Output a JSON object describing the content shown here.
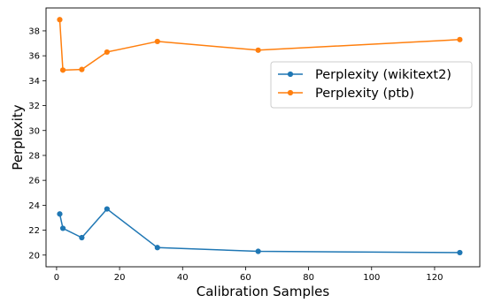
{
  "chart_data": {
    "type": "line",
    "title": "",
    "xlabel": "Calibration Samples",
    "ylabel": "Perplexity",
    "xlim": [
      -3.35,
      134.35
    ],
    "ylim": [
      19.06,
      39.84
    ],
    "xticks": [
      0,
      20,
      40,
      60,
      80,
      100,
      120
    ],
    "yticks": [
      20,
      22,
      24,
      26,
      28,
      30,
      32,
      34,
      36,
      38
    ],
    "grid": false,
    "legend_position": "center-right",
    "x": [
      1,
      2,
      8,
      16,
      32,
      64,
      128
    ],
    "series": [
      {
        "name": "Perplexity (wikitext2)",
        "color": "#1f77b4",
        "marker": "circle",
        "values": [
          23.3,
          22.15,
          21.4,
          23.7,
          20.6,
          20.3,
          20.2
        ]
      },
      {
        "name": "Perplexity (ptb)",
        "color": "#ff7f0e",
        "marker": "circle",
        "values": [
          38.9,
          34.85,
          34.9,
          36.3,
          37.15,
          36.45,
          37.3
        ]
      }
    ]
  }
}
